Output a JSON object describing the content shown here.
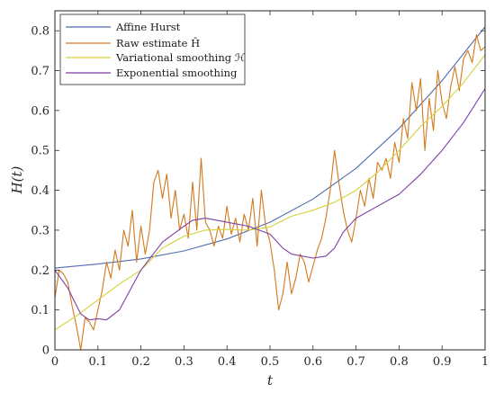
{
  "chart_data": {
    "type": "line",
    "xlabel": "t",
    "ylabel": "H(t)",
    "xlim": [
      0,
      1
    ],
    "ylim": [
      0,
      0.85
    ],
    "xticks": [
      "0",
      "0.1",
      "0.2",
      "0.3",
      "0.4",
      "0.5",
      "0.6",
      "0.7",
      "0.8",
      "0.9",
      "1"
    ],
    "yticks": [
      "0",
      "0.1",
      "0.2",
      "0.3",
      "0.4",
      "0.5",
      "0.6",
      "0.7",
      "0.8"
    ],
    "grid": false,
    "legend_position": "top-left",
    "series": [
      {
        "name": "Affine Hurst",
        "color": "#4f6bb0",
        "x": [
          0,
          0.1,
          0.2,
          0.3,
          0.4,
          0.5,
          0.6,
          0.7,
          0.8,
          0.9,
          1.0
        ],
        "values": [
          0.205,
          0.215,
          0.228,
          0.248,
          0.278,
          0.32,
          0.378,
          0.455,
          0.555,
          0.675,
          0.81
        ]
      },
      {
        "name": "Raw estimate Ĥ",
        "color": "#d17a1e",
        "x": [
          0,
          0.01,
          0.02,
          0.03,
          0.04,
          0.05,
          0.06,
          0.07,
          0.08,
          0.09,
          0.1,
          0.11,
          0.12,
          0.13,
          0.14,
          0.15,
          0.16,
          0.17,
          0.18,
          0.19,
          0.2,
          0.21,
          0.22,
          0.23,
          0.24,
          0.25,
          0.26,
          0.27,
          0.28,
          0.29,
          0.3,
          0.31,
          0.32,
          0.33,
          0.34,
          0.35,
          0.36,
          0.37,
          0.38,
          0.39,
          0.4,
          0.41,
          0.42,
          0.43,
          0.44,
          0.45,
          0.46,
          0.47,
          0.48,
          0.49,
          0.5,
          0.51,
          0.52,
          0.53,
          0.54,
          0.55,
          0.56,
          0.57,
          0.58,
          0.59,
          0.6,
          0.61,
          0.62,
          0.63,
          0.64,
          0.65,
          0.66,
          0.67,
          0.68,
          0.69,
          0.7,
          0.71,
          0.72,
          0.73,
          0.74,
          0.75,
          0.76,
          0.77,
          0.78,
          0.79,
          0.8,
          0.81,
          0.82,
          0.83,
          0.84,
          0.85,
          0.86,
          0.87,
          0.88,
          0.89,
          0.9,
          0.91,
          0.92,
          0.93,
          0.94,
          0.95,
          0.96,
          0.97,
          0.98,
          0.99,
          1.0
        ],
        "values": [
          0.13,
          0.2,
          0.19,
          0.17,
          0.11,
          0.06,
          0.0,
          0.08,
          0.07,
          0.05,
          0.1,
          0.15,
          0.22,
          0.18,
          0.25,
          0.2,
          0.3,
          0.26,
          0.35,
          0.22,
          0.31,
          0.24,
          0.3,
          0.42,
          0.45,
          0.38,
          0.44,
          0.33,
          0.4,
          0.3,
          0.34,
          0.28,
          0.42,
          0.3,
          0.48,
          0.32,
          0.3,
          0.26,
          0.31,
          0.28,
          0.36,
          0.29,
          0.33,
          0.27,
          0.34,
          0.3,
          0.38,
          0.26,
          0.4,
          0.31,
          0.27,
          0.2,
          0.1,
          0.14,
          0.22,
          0.14,
          0.18,
          0.24,
          0.22,
          0.17,
          0.21,
          0.25,
          0.28,
          0.33,
          0.4,
          0.5,
          0.42,
          0.35,
          0.3,
          0.27,
          0.33,
          0.4,
          0.36,
          0.43,
          0.38,
          0.47,
          0.45,
          0.48,
          0.43,
          0.52,
          0.47,
          0.58,
          0.53,
          0.67,
          0.6,
          0.68,
          0.5,
          0.63,
          0.55,
          0.7,
          0.62,
          0.58,
          0.66,
          0.71,
          0.65,
          0.73,
          0.75,
          0.72,
          0.79,
          0.75,
          0.76
        ]
      },
      {
        "name": "Variational smoothing ℋ",
        "color": "#d4d13a",
        "x": [
          0,
          0.05,
          0.1,
          0.15,
          0.2,
          0.25,
          0.3,
          0.35,
          0.4,
          0.45,
          0.5,
          0.55,
          0.6,
          0.65,
          0.7,
          0.75,
          0.8,
          0.85,
          0.9,
          0.95,
          1.0
        ],
        "values": [
          0.05,
          0.085,
          0.125,
          0.165,
          0.2,
          0.255,
          0.285,
          0.3,
          0.302,
          0.3,
          0.308,
          0.335,
          0.35,
          0.37,
          0.4,
          0.445,
          0.5,
          0.56,
          0.61,
          0.67,
          0.74
        ]
      },
      {
        "name": "Exponential smoothing",
        "color": "#7e3fa5",
        "x": [
          0,
          0.03,
          0.06,
          0.08,
          0.1,
          0.12,
          0.15,
          0.2,
          0.25,
          0.3,
          0.32,
          0.35,
          0.4,
          0.45,
          0.5,
          0.53,
          0.55,
          0.6,
          0.63,
          0.65,
          0.67,
          0.7,
          0.75,
          0.8,
          0.85,
          0.9,
          0.95,
          1.0
        ],
        "values": [
          0.2,
          0.155,
          0.09,
          0.075,
          0.078,
          0.075,
          0.1,
          0.2,
          0.27,
          0.31,
          0.325,
          0.33,
          0.32,
          0.31,
          0.29,
          0.255,
          0.24,
          0.23,
          0.235,
          0.255,
          0.295,
          0.33,
          0.36,
          0.39,
          0.44,
          0.5,
          0.57,
          0.655
        ]
      }
    ]
  }
}
